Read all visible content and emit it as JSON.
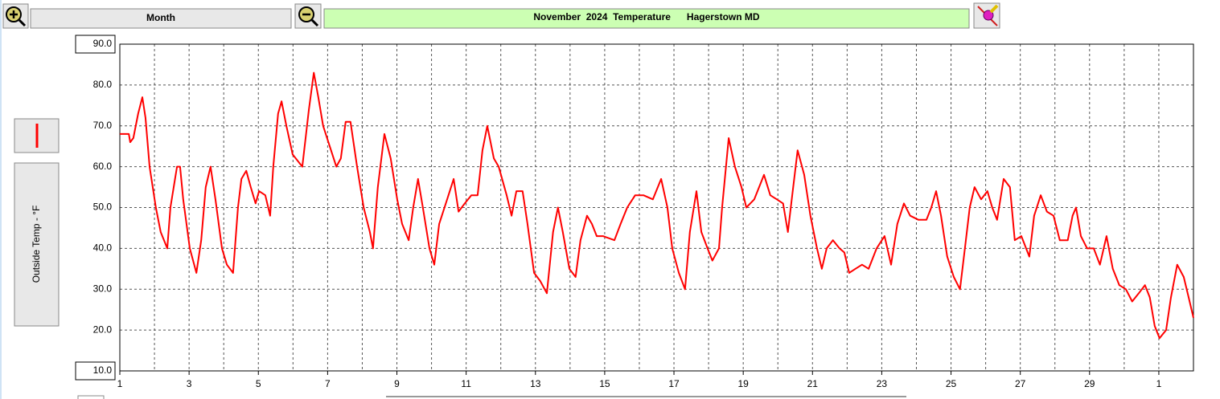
{
  "toolbar": {
    "period": "Month"
  },
  "chart_data": {
    "type": "line",
    "title": "November  2024  Temperature      Hagerstown MD",
    "ylabel": "Outside Temp - °F",
    "color": "#ff0000",
    "grid": true,
    "xlim": [
      1,
      32
    ],
    "xticks": [
      1,
      3,
      5,
      7,
      9,
      11,
      13,
      15,
      17,
      19,
      21,
      23,
      25,
      27,
      29,
      {
        "value": 31,
        "label": "1"
      }
    ],
    "ylim": [
      10,
      90
    ],
    "yticks": [
      {
        "value": 10,
        "label": "10.0"
      },
      {
        "value": 20,
        "label": "20.0"
      },
      {
        "value": 30,
        "label": "30.0"
      },
      {
        "value": 40,
        "label": "40.0"
      },
      {
        "value": 50,
        "label": "50.0"
      },
      {
        "value": 60,
        "label": "60.0"
      },
      {
        "value": 70,
        "label": "70.0"
      },
      {
        "value": 80,
        "label": "80.0"
      },
      {
        "value": 90,
        "label": "90.0"
      }
    ],
    "x": [
      1.0,
      1.26,
      1.3,
      1.39,
      1.53,
      1.65,
      1.74,
      1.86,
      2.04,
      2.18,
      2.37,
      2.46,
      2.65,
      2.74,
      2.83,
      3.02,
      3.21,
      3.35,
      3.48,
      3.62,
      3.76,
      3.95,
      4.09,
      4.27,
      4.41,
      4.51,
      4.65,
      4.78,
      4.92,
      5.02,
      5.2,
      5.34,
      5.43,
      5.57,
      5.67,
      5.81,
      5.99,
      6.27,
      6.46,
      6.6,
      6.73,
      6.87,
      7.06,
      7.25,
      7.38,
      7.52,
      7.66,
      7.85,
      8.04,
      8.22,
      8.31,
      8.45,
      8.64,
      8.82,
      9.01,
      9.15,
      9.34,
      9.47,
      9.61,
      9.75,
      9.94,
      10.08,
      10.22,
      10.45,
      10.64,
      10.78,
      10.96,
      11.15,
      11.33,
      11.47,
      11.61,
      11.8,
      11.94,
      12.17,
      12.31,
      12.45,
      12.63,
      12.77,
      12.96,
      13.14,
      13.33,
      13.51,
      13.65,
      13.79,
      13.98,
      14.16,
      14.3,
      14.49,
      14.63,
      14.77,
      14.95,
      15.28,
      15.46,
      15.65,
      15.88,
      16.12,
      16.39,
      16.63,
      16.81,
      16.95,
      17.14,
      17.32,
      17.46,
      17.65,
      17.79,
      17.97,
      18.11,
      18.3,
      18.39,
      18.58,
      18.76,
      18.95,
      19.09,
      19.32,
      19.6,
      19.78,
      19.97,
      20.15,
      20.29,
      20.43,
      20.57,
      20.76,
      20.94,
      21.13,
      21.27,
      21.41,
      21.59,
      21.78,
      21.92,
      22.06,
      22.24,
      22.43,
      22.62,
      22.85,
      23.08,
      23.27,
      23.45,
      23.64,
      23.82,
      24.06,
      24.29,
      24.43,
      24.57,
      24.71,
      24.89,
      25.08,
      25.26,
      25.4,
      25.54,
      25.68,
      25.87,
      26.05,
      26.19,
      26.33,
      26.52,
      26.7,
      26.84,
      27.03,
      27.26,
      27.4,
      27.59,
      27.77,
      27.96,
      28.14,
      28.37,
      28.51,
      28.61,
      28.75,
      28.93,
      29.12,
      29.3,
      29.49,
      29.67,
      29.86,
      30.05,
      30.23,
      30.42,
      30.6,
      30.74,
      30.88,
      31.02,
      31.21,
      31.35,
      31.53,
      31.72,
      31.86,
      32.0
    ],
    "values": [
      68,
      68,
      66,
      67,
      73,
      77,
      72,
      60,
      50,
      44,
      40,
      50,
      60,
      60,
      52,
      40,
      34,
      42,
      55,
      60,
      52,
      40,
      36,
      34,
      50,
      57,
      59,
      55,
      51,
      54,
      53,
      48,
      60,
      73,
      76,
      70,
      63,
      60,
      74,
      83,
      77,
      70,
      65,
      60,
      62,
      71,
      71,
      60,
      50,
      44,
      40,
      55,
      68,
      62,
      52,
      46,
      42,
      50,
      57,
      50,
      40,
      36,
      46,
      52,
      57,
      49,
      51,
      53,
      53,
      64,
      70,
      62,
      60,
      53,
      48,
      54,
      54,
      46,
      34,
      32,
      29,
      44,
      50,
      44,
      35,
      33,
      42,
      48,
      46,
      43,
      43,
      42,
      46,
      50,
      53,
      53,
      52,
      57,
      50,
      40,
      34,
      30,
      44,
      54,
      44,
      40,
      37,
      40,
      50,
      67,
      60,
      55,
      50,
      52,
      58,
      53,
      52,
      51,
      44,
      54,
      64,
      58,
      48,
      40,
      35,
      40,
      42,
      40,
      39,
      34,
      35,
      36,
      35,
      40,
      43,
      36,
      46,
      51,
      48,
      47,
      47,
      50,
      54,
      48,
      38,
      33,
      30,
      40,
      50,
      55,
      52,
      54,
      50,
      47,
      57,
      55,
      42,
      43,
      38,
      48,
      53,
      49,
      48,
      42,
      42,
      48,
      50,
      43,
      40,
      40,
      36,
      43,
      35,
      31,
      30,
      27,
      29,
      31,
      28,
      21,
      18,
      20,
      28,
      36,
      33,
      28,
      23
    ]
  }
}
